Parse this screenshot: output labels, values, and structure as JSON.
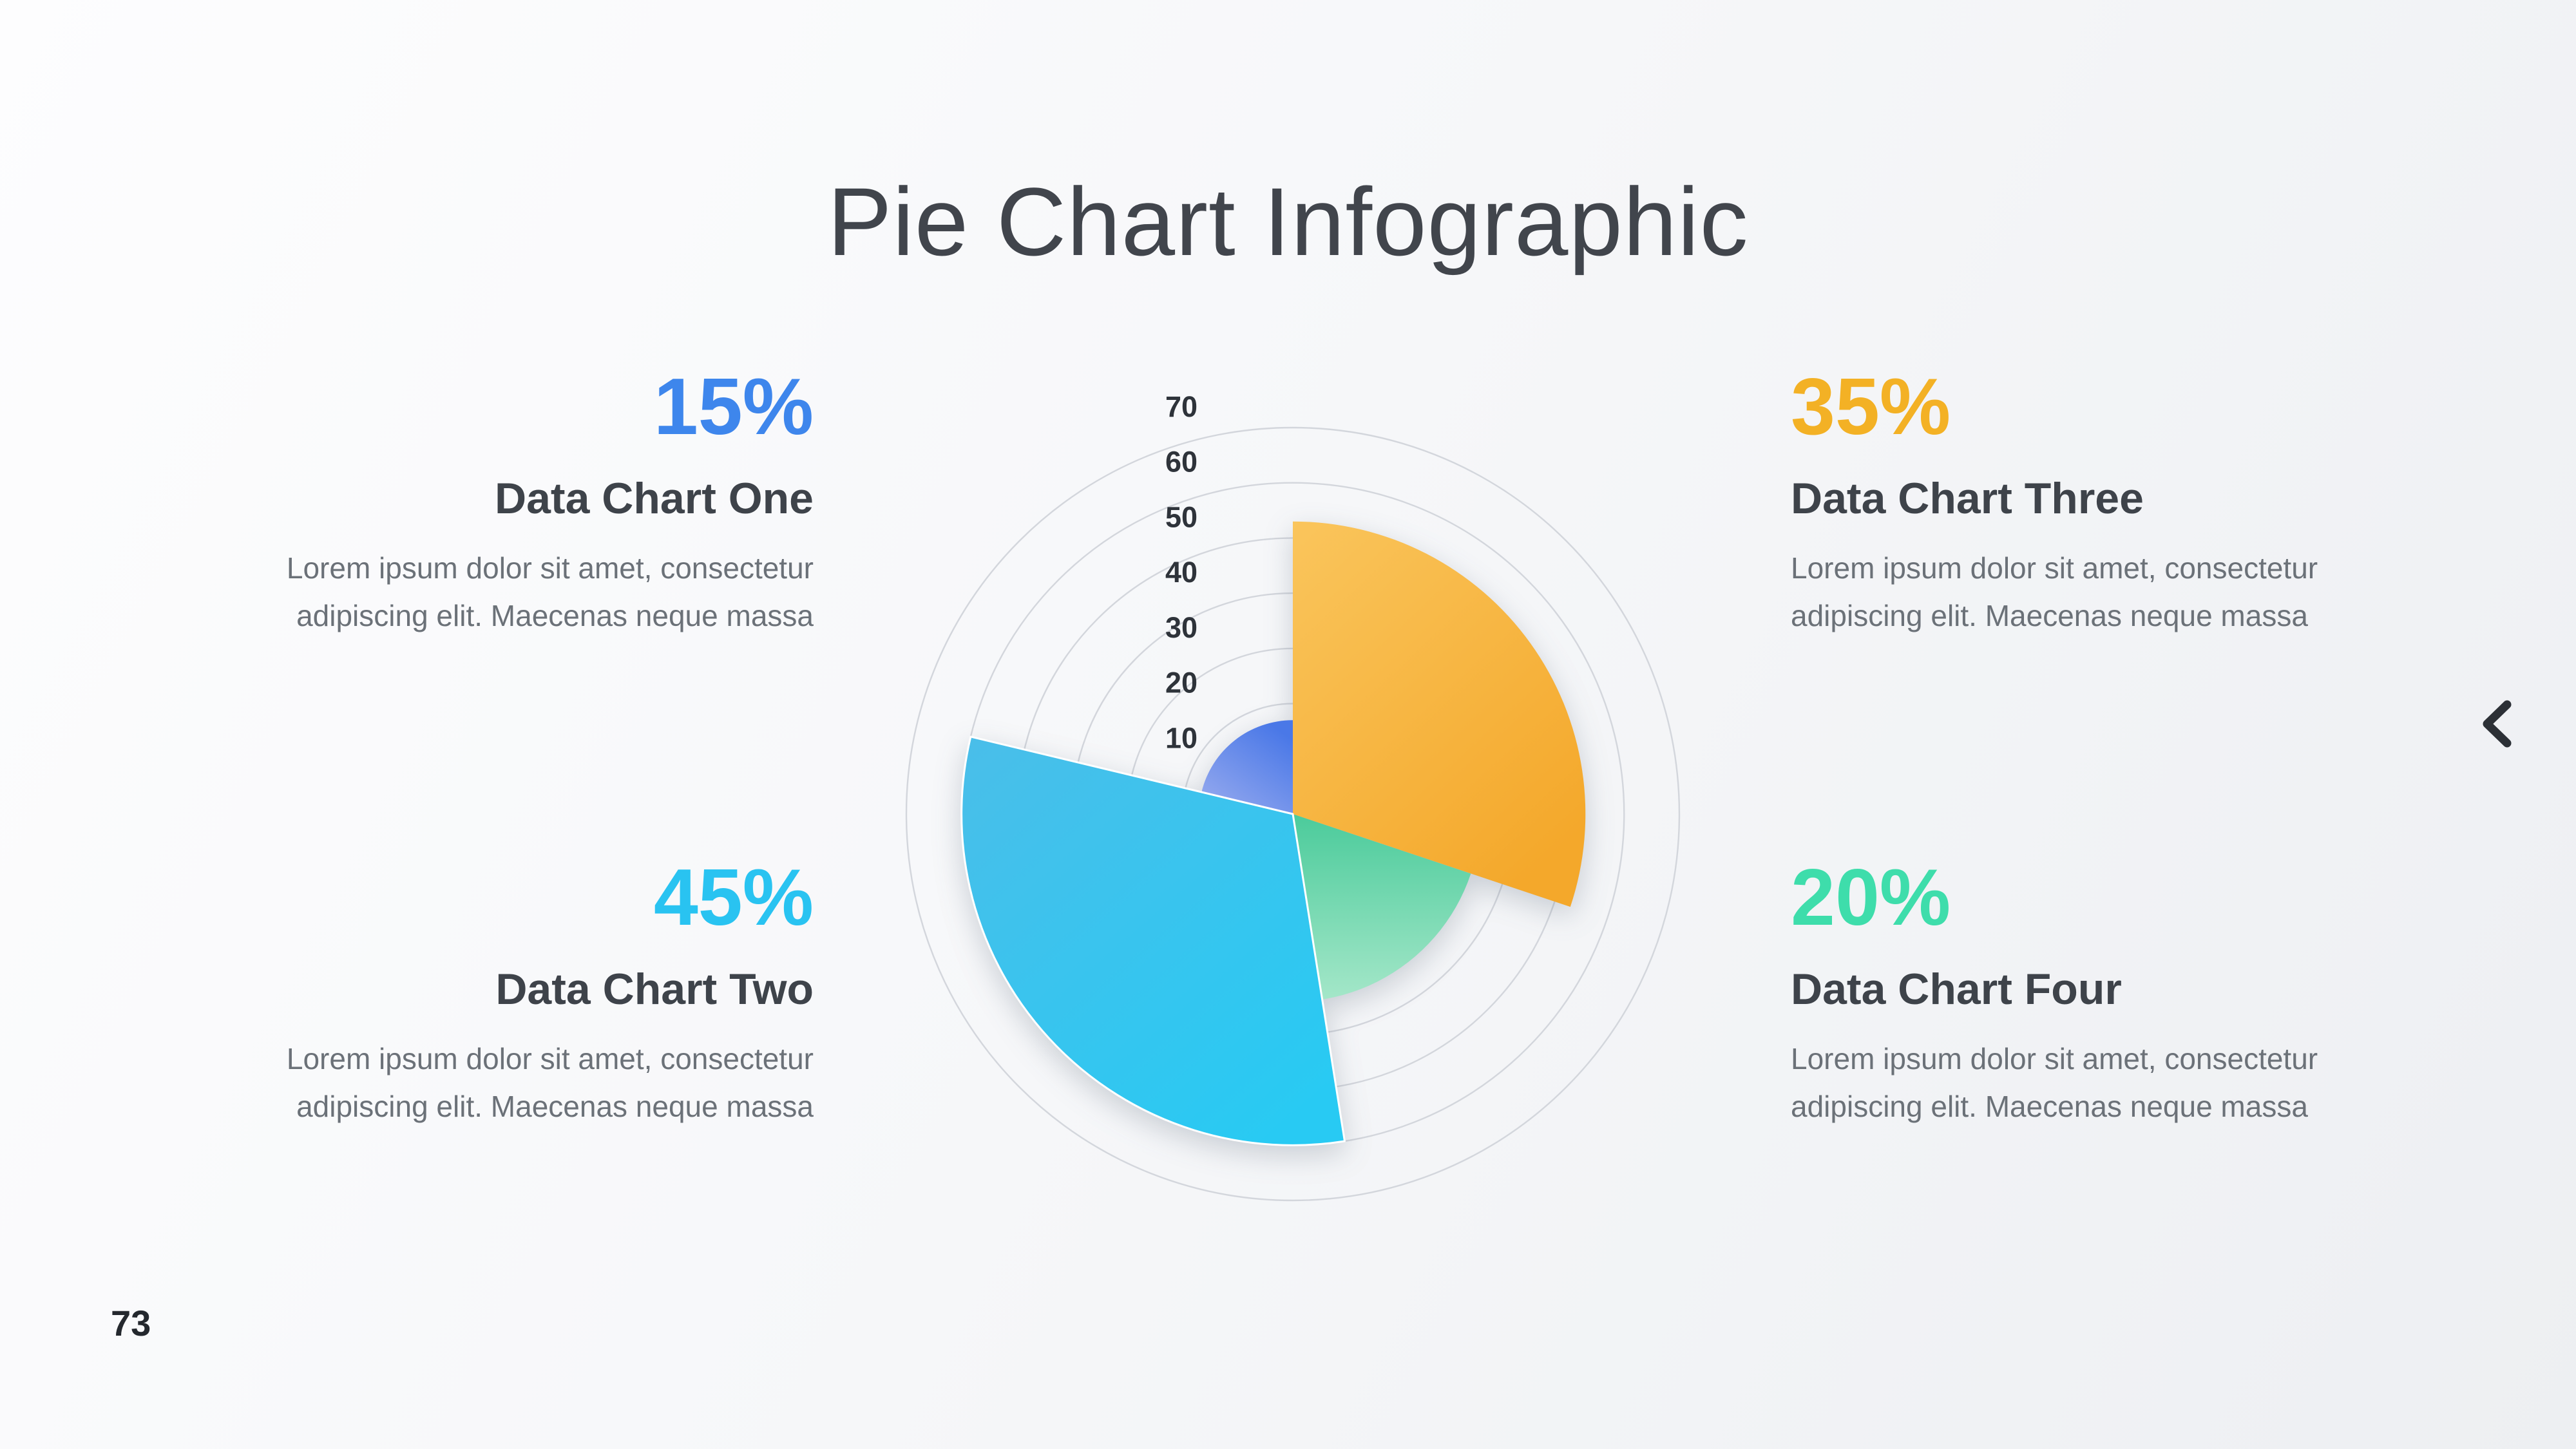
{
  "slide": {
    "title": "Pie Chart Infographic",
    "page_number": "73",
    "nav": {
      "prev_icon": "chevron-left"
    }
  },
  "blocks": [
    {
      "id": "one",
      "percent": "15%",
      "percent_color": "#3e86ec",
      "heading": "Data Chart One",
      "body_lines": [
        "Lorem ipsum dolor sit amet, consectetur",
        "adipiscing elit. Maecenas neque massa"
      ]
    },
    {
      "id": "two",
      "percent": "45%",
      "percent_color": "#29c3f1",
      "heading": "Data Chart Two",
      "body_lines": [
        "Lorem ipsum dolor sit amet, consectetur",
        "adipiscing elit. Maecenas neque massa"
      ]
    },
    {
      "id": "three",
      "percent": "35%",
      "percent_color": "#f3b125",
      "heading": "Data Chart Three",
      "body_lines": [
        "Lorem ipsum dolor sit amet, consectetur",
        "adipiscing elit. Maecenas neque massa"
      ]
    },
    {
      "id": "four",
      "percent": "20%",
      "percent_color": "#3eddab",
      "heading": "Data Chart Four",
      "body_lines": [
        "Lorem ipsum dolor sit amet, consectetur",
        "adipiscing elit. Maecenas neque massa"
      ]
    }
  ],
  "chart_data": {
    "type": "polar-area",
    "title": "Pie Chart Infographic",
    "legend_position": "none",
    "grid": true,
    "axis": {
      "min": 0,
      "max": 70,
      "tick_interval": 10,
      "ticks": [
        10,
        20,
        30,
        40,
        50,
        60,
        70
      ],
      "grid_color": "#d3d6dc",
      "label_color": "#2e333a"
    },
    "slices": [
      {
        "id": "four",
        "name": "Data Chart Four",
        "percent": 20,
        "start_deg": 108.5,
        "end_deg": 198,
        "radius_value": 34,
        "gradient": {
          "x1": 0,
          "y1": 0,
          "x2": 0,
          "y2": 1,
          "from": "#4bcb9b",
          "to": "#a5e7c9"
        }
      },
      {
        "id": "one",
        "name": "Data Chart One",
        "percent": 15,
        "start_deg": 283.5,
        "end_deg": 360,
        "radius_value": 17,
        "gradient": {
          "x1": 0.7,
          "y1": 0,
          "x2": 0,
          "y2": 1,
          "from": "#4a78e7",
          "to": "#9badef"
        }
      },
      {
        "id": "three",
        "name": "Data Chart Three",
        "percent": 35,
        "start_deg": 0,
        "end_deg": 108.5,
        "radius_value": 53,
        "gradient": {
          "x1": 0,
          "y1": 0,
          "x2": 0.7,
          "y2": 1,
          "from": "#fac55c",
          "to": "#f4a82b"
        }
      },
      {
        "id": "two",
        "name": "Data Chart Two",
        "percent": 45,
        "start_deg": 171,
        "end_deg": 283.5,
        "radius_value": 60,
        "stroke": "#ffffff",
        "stroke_width": 3,
        "gradient": {
          "x1": 0,
          "y1": 0,
          "x2": 0.8,
          "y2": 1,
          "from": "#4abee9",
          "to": "#28caf3"
        }
      }
    ]
  }
}
